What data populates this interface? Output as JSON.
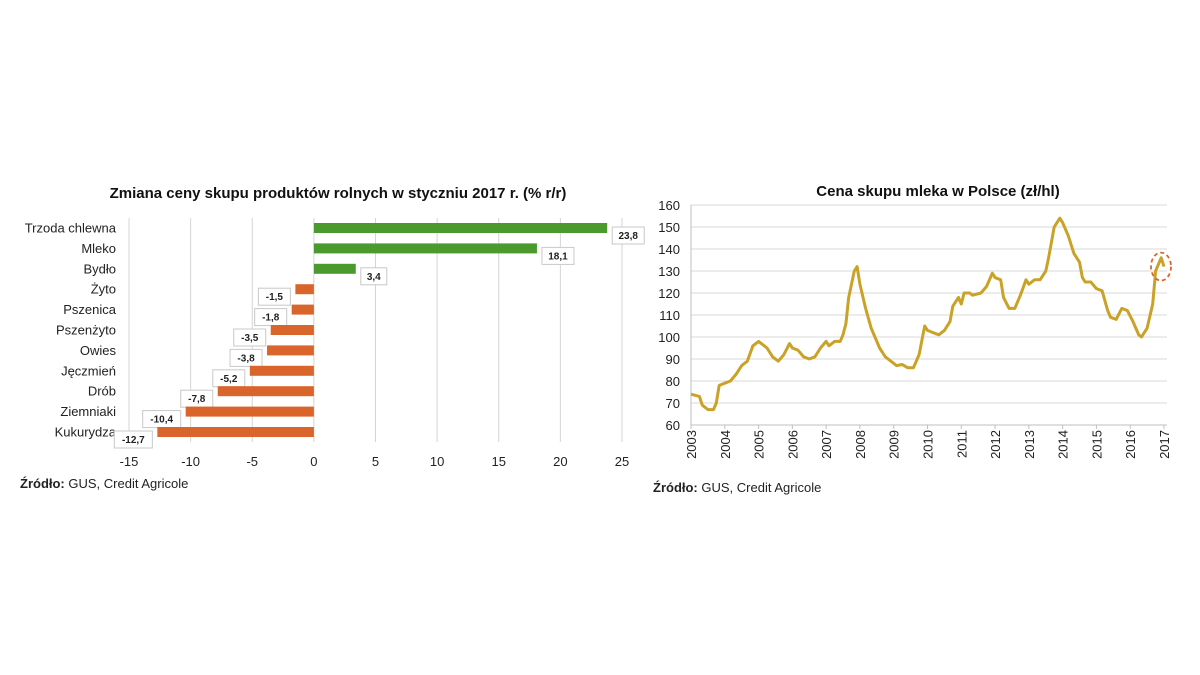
{
  "chart_data": [
    {
      "type": "bar",
      "orientation": "horizontal",
      "title": "Zmiana ceny skupu produktów rolnych w styczniu 2017 r. (% r/r)",
      "categories": [
        "Trzoda chlewna",
        "Mleko",
        "Bydło",
        "Żyto",
        "Pszenica",
        "Pszenżyto",
        "Owies",
        "Jęczmień",
        "Drób",
        "Ziemniaki",
        "Kukurydza"
      ],
      "values": [
        23.8,
        18.1,
        3.4,
        -1.5,
        -1.8,
        -3.5,
        -3.8,
        -5.2,
        -7.8,
        -10.4,
        -12.7
      ],
      "data_labels": [
        "23,8",
        "18,1",
        "3,4",
        "-1,5",
        "-1,8",
        "-3,5",
        "-3,8",
        "-5,2",
        "-7,8",
        "-10,4",
        "-12,7"
      ],
      "xlim": [
        -15,
        25
      ],
      "xticks": [
        "-15",
        "-10",
        "-5",
        "0",
        "5",
        "10",
        "15",
        "20",
        "25"
      ],
      "grid": "vertical",
      "colors": {
        "positive": "#4a9a2e",
        "negative": "#d9652b"
      },
      "source_label": "Źródło:",
      "source_text": " GUS, Credit Agricole"
    },
    {
      "type": "line",
      "title": "Cena skupu mleka w Polsce (zł/hl)",
      "ylim": [
        60,
        160
      ],
      "yticks": [
        "60",
        "70",
        "80",
        "90",
        "100",
        "110",
        "120",
        "130",
        "140",
        "150",
        "160"
      ],
      "xticks": [
        "2003",
        "2004",
        "2005",
        "2006",
        "2007",
        "2008",
        "2009",
        "2010",
        "2011",
        "2012",
        "2013",
        "2014",
        "2015",
        "2016",
        "2017"
      ],
      "grid": "horizontal",
      "color": "#c9a227",
      "highlight_color": "#d9652b",
      "highlight": "2017-01",
      "points": [
        [
          "2003-01",
          74
        ],
        [
          "2003-04",
          73
        ],
        [
          "2003-05",
          69
        ],
        [
          "2003-07",
          67
        ],
        [
          "2003-09",
          67
        ],
        [
          "2003-10",
          70
        ],
        [
          "2003-11",
          78
        ],
        [
          "2004-01",
          79
        ],
        [
          "2004-03",
          80
        ],
        [
          "2004-05",
          83
        ],
        [
          "2004-07",
          87
        ],
        [
          "2004-09",
          89
        ],
        [
          "2004-11",
          96
        ],
        [
          "2005-01",
          98
        ],
        [
          "2005-04",
          95
        ],
        [
          "2005-06",
          91
        ],
        [
          "2005-08",
          89
        ],
        [
          "2005-10",
          92
        ],
        [
          "2005-12",
          97
        ],
        [
          "2006-01",
          95
        ],
        [
          "2006-03",
          94
        ],
        [
          "2006-05",
          91
        ],
        [
          "2006-07",
          90
        ],
        [
          "2006-09",
          91
        ],
        [
          "2006-11",
          95
        ],
        [
          "2007-01",
          98
        ],
        [
          "2007-02",
          96
        ],
        [
          "2007-04",
          98
        ],
        [
          "2007-06",
          98
        ],
        [
          "2007-07",
          101
        ],
        [
          "2007-08",
          106
        ],
        [
          "2007-09",
          118
        ],
        [
          "2007-11",
          130
        ],
        [
          "2007-12",
          132
        ],
        [
          "2008-01",
          124
        ],
        [
          "2008-03",
          113
        ],
        [
          "2008-05",
          104
        ],
        [
          "2008-08",
          95
        ],
        [
          "2008-10",
          91
        ],
        [
          "2008-12",
          89
        ],
        [
          "2009-02",
          87
        ],
        [
          "2009-04",
          87.5
        ],
        [
          "2009-06",
          86
        ],
        [
          "2009-08",
          86
        ],
        [
          "2009-10",
          92
        ],
        [
          "2009-12",
          105
        ],
        [
          "2010-01",
          103
        ],
        [
          "2010-03",
          102
        ],
        [
          "2010-05",
          101
        ],
        [
          "2010-07",
          103
        ],
        [
          "2010-09",
          107
        ],
        [
          "2010-10",
          114
        ],
        [
          "2010-12",
          118
        ],
        [
          "2011-01",
          115
        ],
        [
          "2011-02",
          120
        ],
        [
          "2011-04",
          120
        ],
        [
          "2011-05",
          119
        ],
        [
          "2011-08",
          120
        ],
        [
          "2011-10",
          123
        ],
        [
          "2011-12",
          129
        ],
        [
          "2012-01",
          127
        ],
        [
          "2012-03",
          126
        ],
        [
          "2012-04",
          118
        ],
        [
          "2012-06",
          113
        ],
        [
          "2012-08",
          113
        ],
        [
          "2012-10",
          119
        ],
        [
          "2012-12",
          126
        ],
        [
          "2013-01",
          124
        ],
        [
          "2013-03",
          126
        ],
        [
          "2013-05",
          126
        ],
        [
          "2013-07",
          130
        ],
        [
          "2013-08",
          136
        ],
        [
          "2013-10",
          150
        ],
        [
          "2013-12",
          154
        ],
        [
          "2014-01",
          152
        ],
        [
          "2014-03",
          146
        ],
        [
          "2014-05",
          138
        ],
        [
          "2014-07",
          134
        ],
        [
          "2014-08",
          127
        ],
        [
          "2014-09",
          125
        ],
        [
          "2014-11",
          125
        ],
        [
          "2015-01",
          122
        ],
        [
          "2015-03",
          121
        ],
        [
          "2015-05",
          112
        ],
        [
          "2015-06",
          109
        ],
        [
          "2015-08",
          108
        ],
        [
          "2015-10",
          113
        ],
        [
          "2015-12",
          112
        ],
        [
          "2016-02",
          107
        ],
        [
          "2016-04",
          101
        ],
        [
          "2016-05",
          100
        ],
        [
          "2016-07",
          104
        ],
        [
          "2016-09",
          115
        ],
        [
          "2016-10",
          130
        ],
        [
          "2016-12",
          136
        ],
        [
          "2017-01",
          132
        ]
      ],
      "source_label": "Źródło:",
      "source_text": " GUS, Credit Agricole"
    }
  ]
}
